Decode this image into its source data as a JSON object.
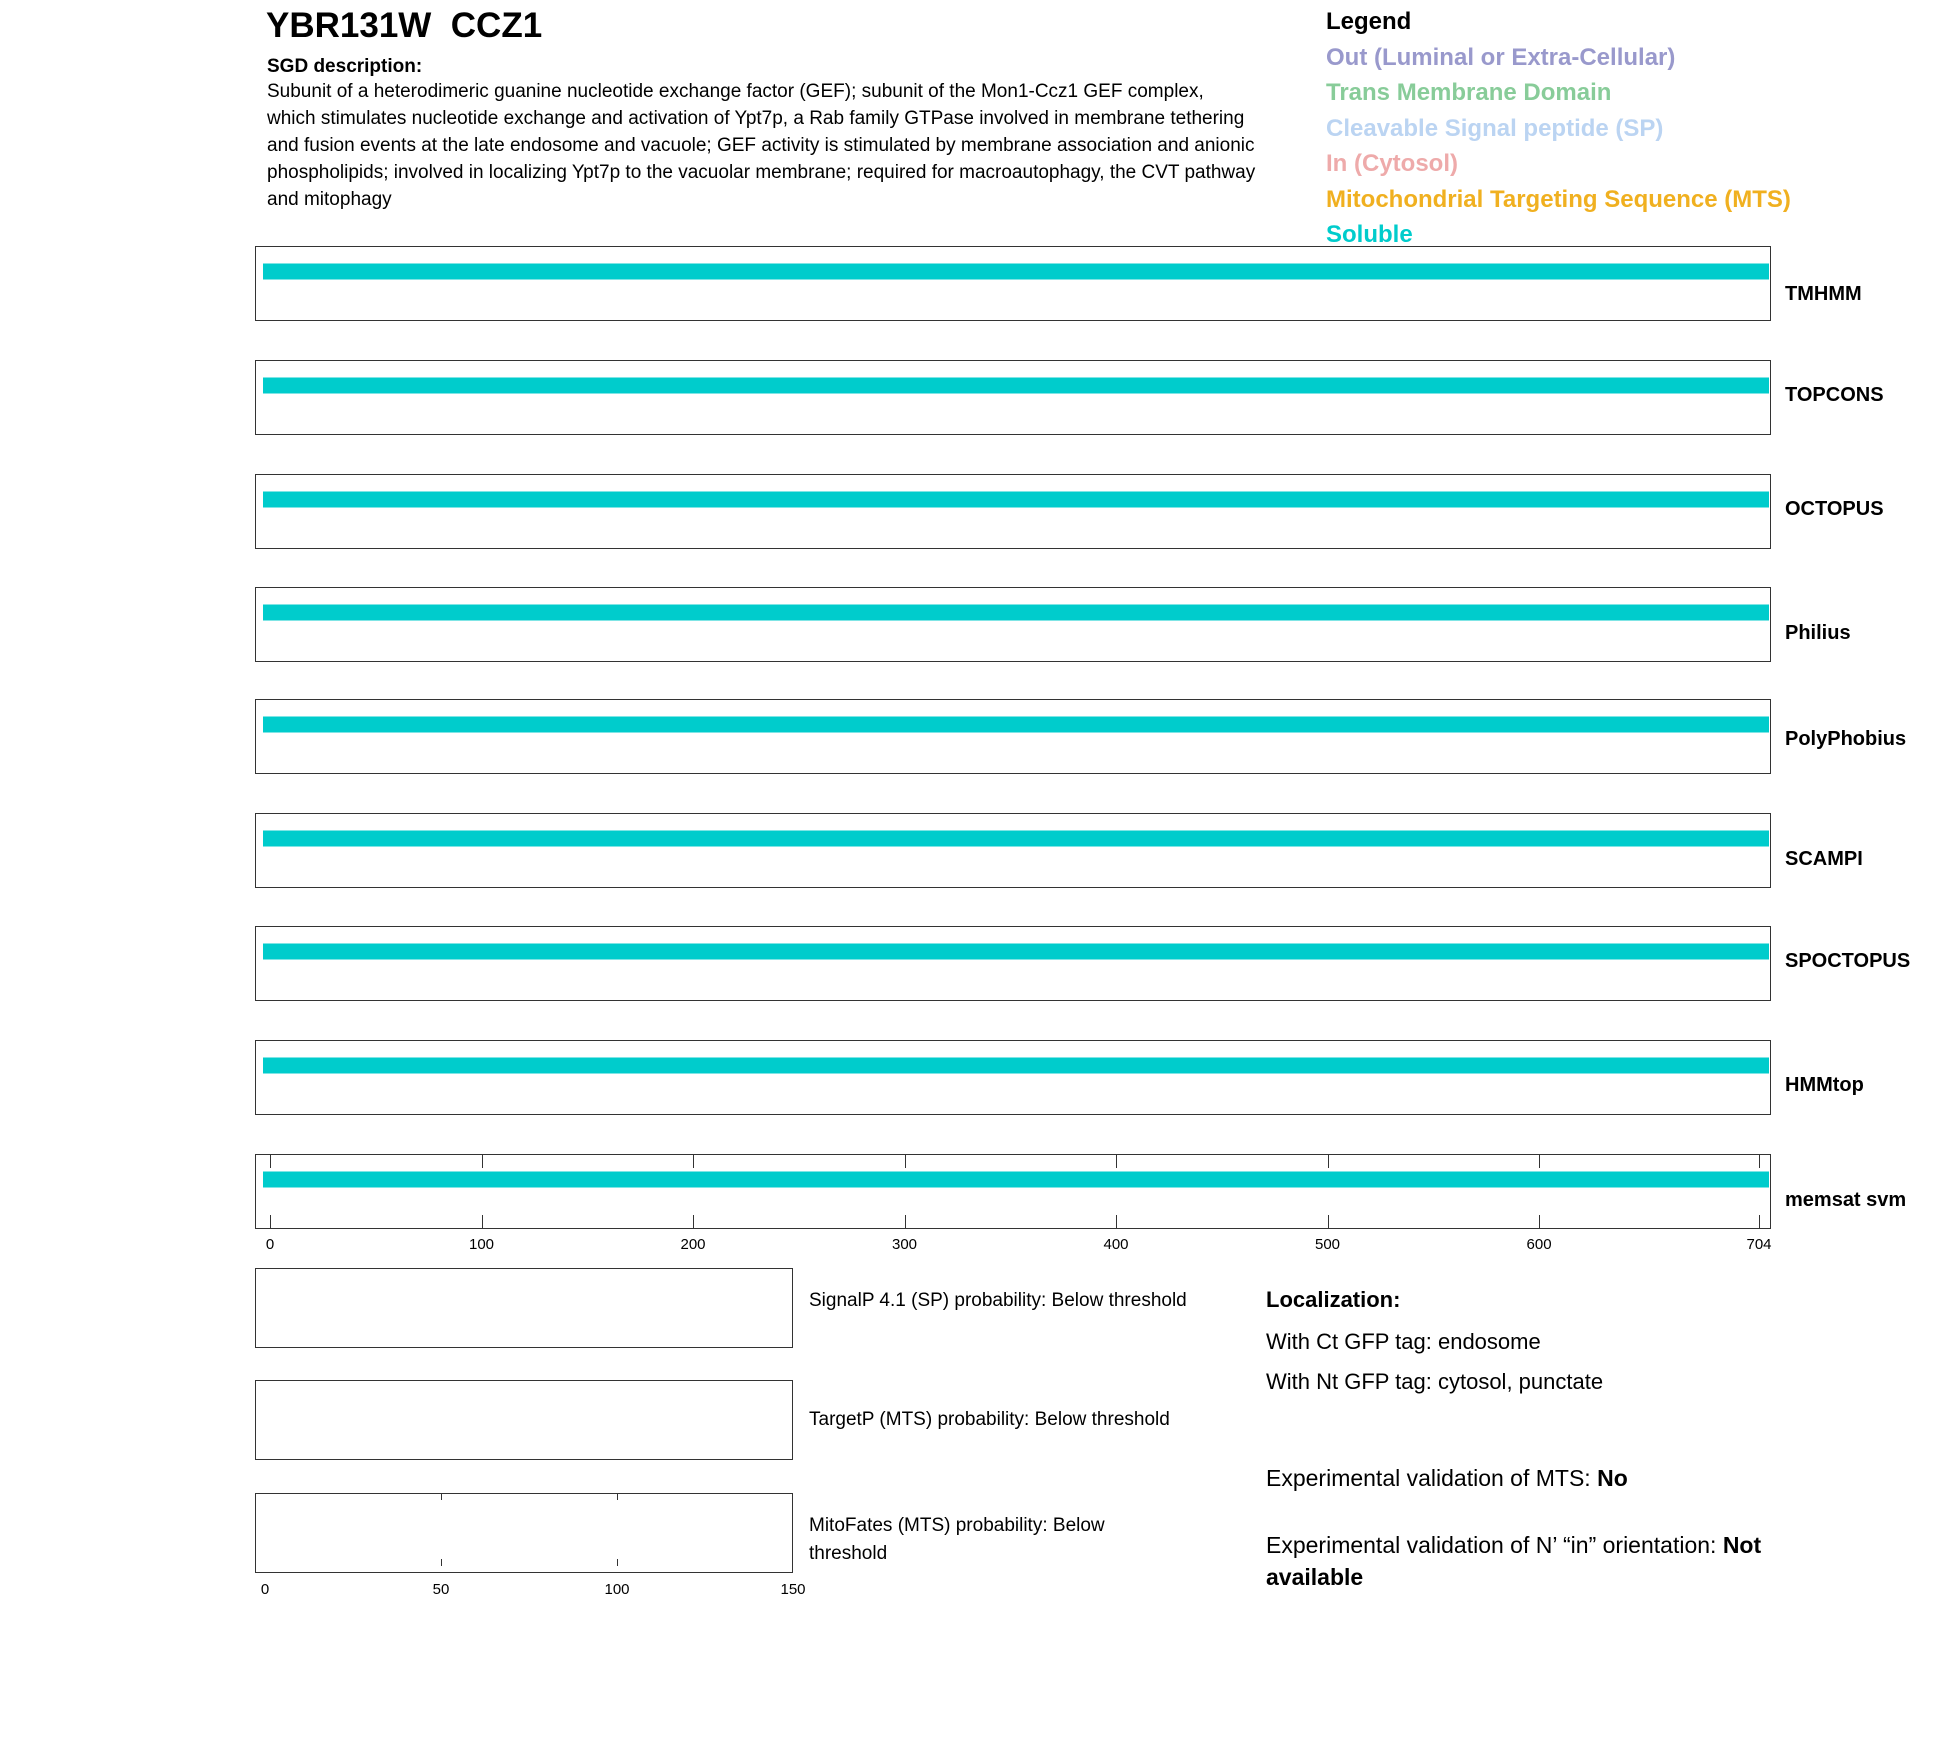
{
  "header": {
    "title": "YBR131W  CCZ1",
    "description_heading": "SGD description:",
    "description": "Subunit of a heterodimeric guanine nucleotide exchange factor (GEF); subunit of the Mon1-Ccz1 GEF complex, which stimulates nucleotide exchange and activation of Ypt7p, a Rab family GTPase involved in membrane tethering and fusion events at the late endosome and vacuole; GEF activity is stimulated by membrane association and anionic phospholipids; involved in localizing Ypt7p to the vacuolar membrane; required for macroautophagy, the CVT pathway and mitophagy"
  },
  "legend": {
    "title": "Legend",
    "items": [
      {
        "label": "Out (Luminal or Extra-Cellular)",
        "color": "#9999cc"
      },
      {
        "label": "Trans Membrane Domain",
        "color": "#88cc99"
      },
      {
        "label": "Cleavable Signal peptide (SP)",
        "color": "#bbd4f2"
      },
      {
        "label": "In (Cytosol)",
        "color": "#eeaaaa"
      },
      {
        "label": "Mitochondrial Targeting Sequence (MTS)",
        "color": "#f0b020"
      },
      {
        "label": "Soluble",
        "color": "#00cccc"
      }
    ]
  },
  "chart_data": {
    "type": "bar",
    "title": "",
    "xlim": [
      0,
      704
    ],
    "x_ticks": [
      "0",
      "100",
      "200",
      "300",
      "400",
      "500",
      "600",
      "704"
    ],
    "x_tick_values": [
      0,
      100,
      200,
      300,
      400,
      500,
      600,
      704
    ],
    "series": [
      {
        "name": "TMHMM",
        "segments": [
          {
            "start": 1,
            "end": 704,
            "type": "Soluble"
          }
        ]
      },
      {
        "name": "TOPCONS",
        "segments": [
          {
            "start": 1,
            "end": 704,
            "type": "Soluble"
          }
        ]
      },
      {
        "name": "OCTOPUS",
        "segments": [
          {
            "start": 1,
            "end": 704,
            "type": "Soluble"
          }
        ]
      },
      {
        "name": "Philius",
        "segments": [
          {
            "start": 1,
            "end": 704,
            "type": "Soluble"
          }
        ]
      },
      {
        "name": "PolyPhobius",
        "segments": [
          {
            "start": 1,
            "end": 704,
            "type": "Soluble"
          }
        ]
      },
      {
        "name": "SCAMPI",
        "segments": [
          {
            "start": 1,
            "end": 704,
            "type": "Soluble"
          }
        ]
      },
      {
        "name": "SPOCTOPUS",
        "segments": [
          {
            "start": 1,
            "end": 704,
            "type": "Soluble"
          }
        ]
      },
      {
        "name": "HMMtop",
        "segments": [
          {
            "start": 1,
            "end": 704,
            "type": "Soluble"
          }
        ]
      },
      {
        "name": "memsat svm",
        "segments": [
          {
            "start": 1,
            "end": 704,
            "type": "Soluble"
          }
        ]
      }
    ],
    "n_term_xlim": [
      0,
      150
    ],
    "n_term_ticks": [
      "0",
      "50",
      "100",
      "150"
    ],
    "n_term_tick_values": [
      0,
      50,
      100,
      150
    ]
  },
  "predictions": [
    "SignalP 4.1 (SP) probability: Below threshold",
    "TargetP (MTS) probability: Below threshold",
    "MitoFates (MTS) probability: Below threshold"
  ],
  "localization": {
    "heading": "Localization:",
    "ct": "With Ct GFP tag: endosome",
    "nt": "With Nt GFP tag: cytosol, punctate",
    "mts_label": "Experimental validation of MTS: ",
    "mts_value": "No",
    "orient_label": "Experimental validation of N’ “in” orientation: ",
    "orient_value": "Not available"
  }
}
